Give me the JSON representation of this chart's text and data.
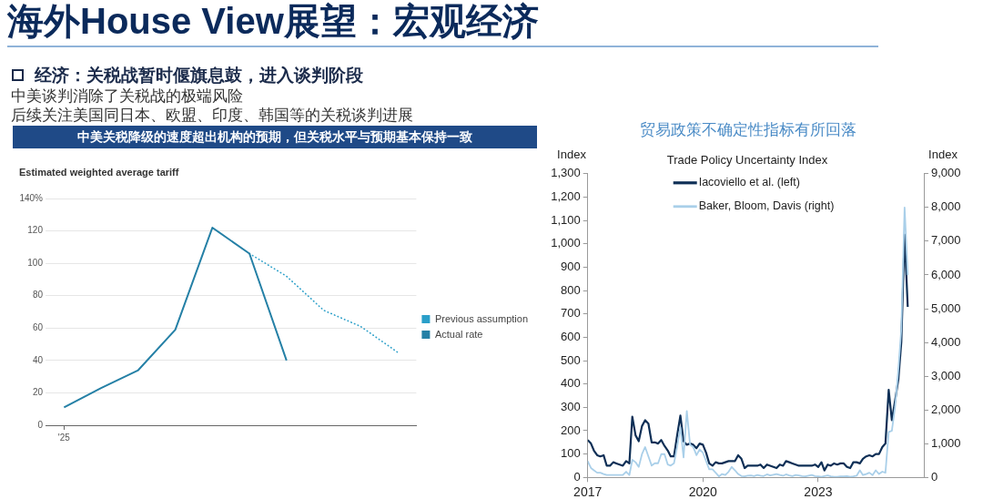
{
  "chart_data": [
    {
      "type": "other",
      "title": "海外House View展望：宏观经济",
      "subtitle": "经济：关税战暂时偃旗息鼓，进入谈判阶段",
      "annotations": [
        "中美谈判消除了关税战的极端风险",
        "后续关注美国同日本、欧盟、印度、韩国等的关税谈判进展"
      ]
    },
    {
      "type": "line",
      "title": "中美关税降级的速度超出机构的预期，但关税水平与预期基本保持一致",
      "subtitle": "Estimated weighted average tariff",
      "categories": [
        "'25",
        null,
        null,
        null,
        null,
        null,
        null,
        null,
        null,
        null
      ],
      "series": [
        {
          "name": "Previous assumption",
          "color": "#2a9fc9",
          "line_style": "dotted",
          "values": [
            null,
            null,
            null,
            null,
            null,
            106,
            92,
            71,
            61,
            45
          ]
        },
        {
          "name": "Actual rate",
          "color": "#2580a6",
          "values": [
            11,
            23,
            34,
            59,
            122,
            106,
            40,
            null,
            null,
            null
          ]
        }
      ],
      "ylim": [
        0,
        140
      ],
      "yticks": [
        0,
        20,
        40,
        60,
        80,
        100,
        120,
        {
          "value": 140,
          "label": "140%"
        }
      ],
      "grid": "y",
      "legend": "right"
    },
    {
      "type": "line",
      "title": "贸易政策不确定性指标有所回落",
      "subtitle": "Trade Policy Uncertainty Index",
      "ylabel": "Index",
      "y2label": "Index",
      "x": [
        "2017-01",
        "2017-02",
        "2017-03",
        "2017-04",
        "2017-05",
        "2017-06",
        "2017-07",
        "2017-08",
        "2017-09",
        "2017-10",
        "2017-11",
        "2017-12",
        "2018-01",
        "2018-02",
        "2018-03",
        "2018-04",
        "2018-05",
        "2018-06",
        "2018-07",
        "2018-08",
        "2018-09",
        "2018-10",
        "2018-11",
        "2018-12",
        "2019-01",
        "2019-02",
        "2019-03",
        "2019-04",
        "2019-05",
        "2019-06",
        "2019-07",
        "2019-08",
        "2019-09",
        "2019-10",
        "2019-11",
        "2019-12",
        "2020-01",
        "2020-02",
        "2020-03",
        "2020-04",
        "2020-05",
        "2020-06",
        "2020-07",
        "2020-08",
        "2020-09",
        "2020-10",
        "2020-11",
        "2020-12",
        "2021-01",
        "2021-02",
        "2021-03",
        "2021-04",
        "2021-05",
        "2021-06",
        "2021-07",
        "2021-08",
        "2021-09",
        "2021-10",
        "2021-11",
        "2021-12",
        "2022-01",
        "2022-02",
        "2022-03",
        "2022-04",
        "2022-05",
        "2022-06",
        "2022-07",
        "2022-08",
        "2022-09",
        "2022-10",
        "2022-11",
        "2022-12",
        "2023-01",
        "2023-02",
        "2023-03",
        "2023-04",
        "2023-05",
        "2023-06",
        "2023-07",
        "2023-08",
        "2023-09",
        "2023-10",
        "2023-11",
        "2023-12",
        "2024-01",
        "2024-02",
        "2024-03",
        "2024-04",
        "2024-05",
        "2024-06",
        "2024-07",
        "2024-08",
        "2024-09",
        "2024-10",
        "2024-11",
        "2024-12",
        "2025-01",
        "2025-02",
        "2025-03",
        "2025-04",
        "2025-05"
      ],
      "series": [
        {
          "name": "Iacoviello et al. (left)",
          "color": "#0e2f56",
          "values": [
            160,
            145,
            115,
            95,
            90,
            95,
            50,
            50,
            65,
            60,
            55,
            50,
            70,
            60,
            260,
            180,
            155,
            220,
            245,
            230,
            150,
            150,
            145,
            160,
            135,
            115,
            90,
            90,
            180,
            265,
            155,
            140,
            145,
            140,
            125,
            145,
            140,
            105,
            60,
            50,
            65,
            60,
            60,
            65,
            70,
            70,
            70,
            95,
            80,
            40,
            50,
            50,
            50,
            50,
            55,
            40,
            55,
            50,
            45,
            40,
            55,
            50,
            70,
            65,
            60,
            55,
            50,
            50,
            50,
            50,
            50,
            55,
            45,
            65,
            30,
            55,
            50,
            60,
            55,
            60,
            60,
            45,
            40,
            65,
            65,
            60,
            80,
            90,
            95,
            90,
            100,
            100,
            130,
            145,
            375,
            245,
            330,
            420,
            580,
            1040,
            730
          ]
        },
        {
          "name": "Baker, Bloom, Davis (right)",
          "color": "#a9cfe9",
          "axis": "y2",
          "values": [
            480,
            280,
            210,
            140,
            140,
            100,
            70,
            70,
            70,
            70,
            70,
            70,
            170,
            70,
            520,
            450,
            310,
            690,
            900,
            620,
            350,
            420,
            420,
            690,
            690,
            380,
            350,
            420,
            900,
            1490,
            590,
            1970,
            970,
            900,
            660,
            830,
            730,
            480,
            240,
            240,
            140,
            30,
            100,
            70,
            170,
            310,
            210,
            100,
            40,
            30,
            50,
            60,
            40,
            70,
            50,
            40,
            90,
            60,
            80,
            100,
            70,
            50,
            90,
            60,
            40,
            70,
            60,
            40,
            30,
            50,
            70,
            40,
            30,
            20,
            40,
            60,
            30,
            20,
            20,
            30,
            30,
            40,
            20,
            30,
            50,
            210,
            70,
            100,
            140,
            70,
            210,
            100,
            170,
            140,
            1350,
            1380,
            2100,
            3200,
            4400,
            8000,
            6000
          ]
        }
      ],
      "xlim": [
        "2017-01",
        "2025-10"
      ],
      "xticks": [
        "2017",
        "2020",
        "2023"
      ],
      "ylim": [
        0,
        1300
      ],
      "yticks": [
        0,
        100,
        200,
        300,
        400,
        500,
        600,
        700,
        800,
        900,
        {
          "value": 1000,
          "label": "1,000"
        },
        {
          "value": 1100,
          "label": "1,100"
        },
        {
          "value": 1200,
          "label": "1,200"
        },
        {
          "value": 1300,
          "label": "1,300"
        }
      ],
      "y2lim": [
        0,
        9000
      ],
      "y2ticks": [
        0,
        {
          "value": 1000,
          "label": "1,000"
        },
        {
          "value": 2000,
          "label": "2,000"
        },
        {
          "value": 3000,
          "label": "3,000"
        },
        {
          "value": 4000,
          "label": "4,000"
        },
        {
          "value": 5000,
          "label": "5,000"
        },
        {
          "value": 6000,
          "label": "6,000"
        },
        {
          "value": 7000,
          "label": "7,000"
        },
        {
          "value": 8000,
          "label": "8,000"
        },
        {
          "value": 9000,
          "label": "9,000"
        }
      ],
      "legend": "top left"
    }
  ]
}
